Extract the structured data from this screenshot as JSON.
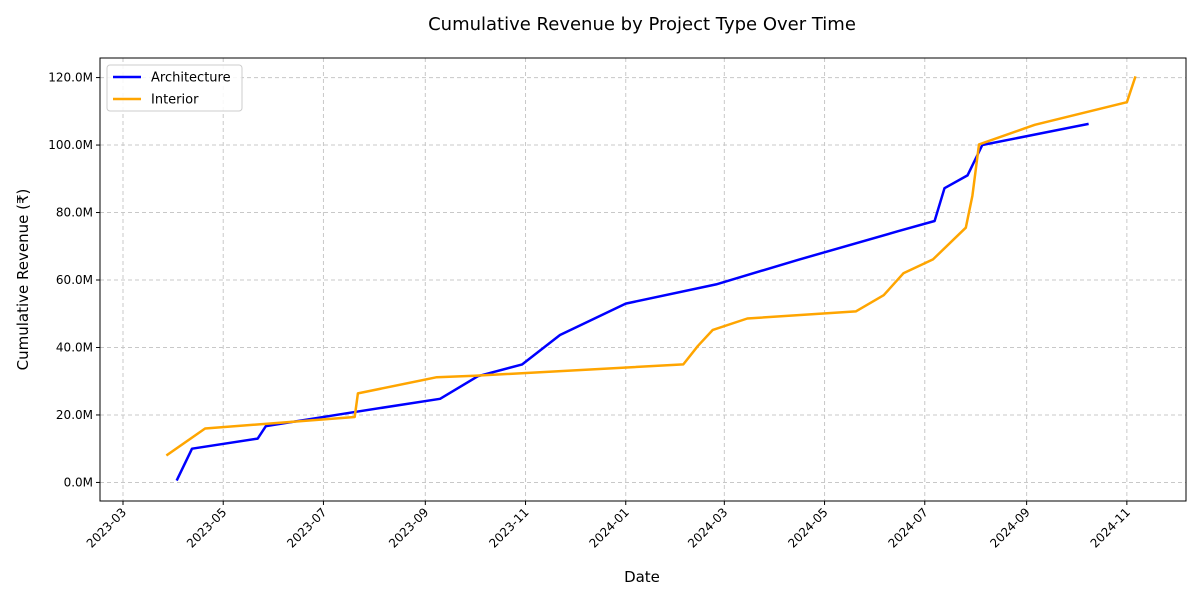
{
  "chart_data": {
    "type": "line",
    "title": "Cumulative Revenue by Project Type Over Time",
    "xlabel": "Date",
    "ylabel": "Cumulative Revenue (₹)",
    "xlim": [
      "2023-02-15",
      "2024-12-07"
    ],
    "ylim": [
      -5.5,
      125.8
    ],
    "x_ticks": [
      "2023-03",
      "2023-05",
      "2023-07",
      "2023-09",
      "2023-11",
      "2024-01",
      "2024-03",
      "2024-05",
      "2024-07",
      "2024-09",
      "2024-11"
    ],
    "y_ticks": [
      0,
      20,
      40,
      60,
      80,
      100,
      120
    ],
    "y_tick_labels": [
      "0.0M",
      "20.0M",
      "40.0M",
      "60.0M",
      "80.0M",
      "100.0M",
      "120.0M"
    ],
    "grid": true,
    "legend_position": "top-left",
    "series": [
      {
        "name": "Architecture",
        "color": "#0000ff",
        "points": [
          [
            "2023-04-03",
            0.9
          ],
          [
            "2023-04-12",
            10.0
          ],
          [
            "2023-05-22",
            13.0
          ],
          [
            "2023-05-27",
            16.7
          ],
          [
            "2023-07-15",
            20.5
          ],
          [
            "2023-09-10",
            24.8
          ],
          [
            "2023-10-03",
            31.5
          ],
          [
            "2023-10-30",
            35.0
          ],
          [
            "2023-11-22",
            43.7
          ],
          [
            "2024-01-01",
            53.0
          ],
          [
            "2024-02-25",
            58.7
          ],
          [
            "2024-04-15",
            66.0
          ],
          [
            "2024-06-15",
            74.5
          ],
          [
            "2024-07-07",
            77.5
          ],
          [
            "2024-07-13",
            87.2
          ],
          [
            "2024-07-27",
            91.0
          ],
          [
            "2024-08-05",
            100.0
          ],
          [
            "2024-10-08",
            106.2
          ]
        ]
      },
      {
        "name": "Interior",
        "color": "#ffa500",
        "points": [
          [
            "2023-03-28",
            8.2
          ],
          [
            "2023-04-20",
            16.0
          ],
          [
            "2023-07-20",
            19.4
          ],
          [
            "2023-07-22",
            26.4
          ],
          [
            "2023-09-08",
            31.2
          ],
          [
            "2023-10-01",
            31.6
          ],
          [
            "2024-02-05",
            35.0
          ],
          [
            "2024-02-14",
            40.5
          ],
          [
            "2024-02-23",
            45.2
          ],
          [
            "2024-03-15",
            48.6
          ],
          [
            "2024-05-20",
            50.7
          ],
          [
            "2024-06-06",
            55.5
          ],
          [
            "2024-06-18",
            62.0
          ],
          [
            "2024-07-06",
            66.1
          ],
          [
            "2024-07-26",
            75.5
          ],
          [
            "2024-07-30",
            85.0
          ],
          [
            "2024-08-03",
            100.2
          ],
          [
            "2024-09-06",
            106.0
          ],
          [
            "2024-11-01",
            112.7
          ],
          [
            "2024-11-06",
            120.0
          ]
        ]
      }
    ]
  }
}
